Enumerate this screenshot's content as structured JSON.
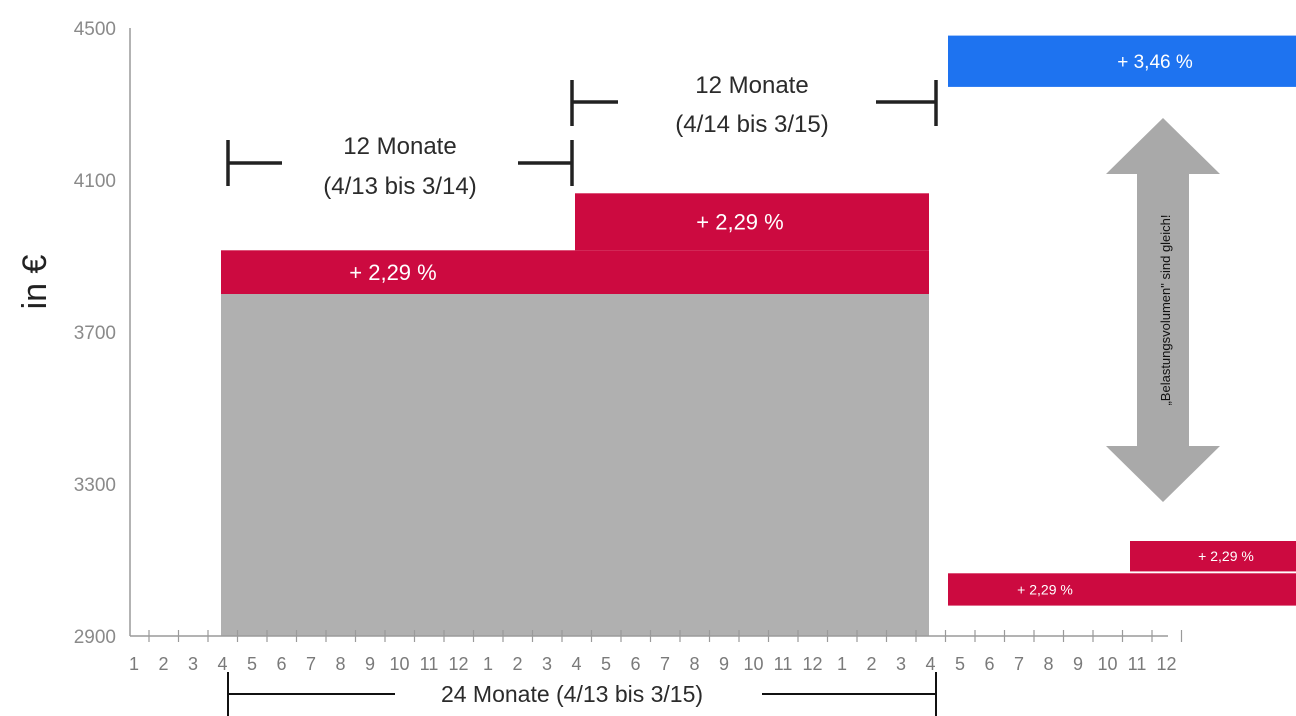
{
  "chart_data": {
    "type": "bar",
    "ylabel": "in €",
    "ylim": [
      2900,
      4500
    ],
    "y_ticks": [
      "4500",
      "4100",
      "3700",
      "3300",
      "2900"
    ],
    "x_ticks": [
      "1",
      "2",
      "3",
      "4",
      "5",
      "6",
      "7",
      "8",
      "9",
      "10",
      "11",
      "12",
      "1",
      "2",
      "3",
      "4",
      "5",
      "6",
      "7",
      "8",
      "9",
      "10",
      "11",
      "12",
      "1",
      "2",
      "3",
      "4",
      "5",
      "6",
      "7",
      "8",
      "9",
      "10",
      "11",
      "12"
    ],
    "grid": false,
    "bars": [
      {
        "name": "base",
        "color": "#b0b0b0",
        "x_from": "4/13",
        "x_to": "3/15",
        "y_from": 2900,
        "y_to": 3800,
        "label": ""
      },
      {
        "name": "increase_1",
        "color": "#cc0a40",
        "x_from": "4/13",
        "x_to": "3/15",
        "y_from": 3800,
        "y_to": 3915,
        "label": "+ 2,29 %"
      },
      {
        "name": "increase_2",
        "color": "#cc0a40",
        "x_from": "4/14",
        "x_to": "3/15",
        "y_from": 3915,
        "y_to": 4065,
        "label": "+ 2,29 %"
      },
      {
        "name": "comparison_right",
        "color": "#1e73f0",
        "x_from": "4/15",
        "x_to": "12/15",
        "y_from": 4345,
        "y_to": 4480,
        "label": "+ 3,46 %"
      },
      {
        "name": "small_1",
        "color": "#cc0a40",
        "x_from": "4/15",
        "x_to": "12/15",
        "y_from": 2980,
        "y_to": 3065,
        "label": "+ 2,29 %"
      },
      {
        "name": "small_2",
        "color": "#cc0a40",
        "x_from": "11/15",
        "x_to": "12/15",
        "y_from": 3070,
        "y_to": 3150,
        "label": "+ 2,29 %"
      }
    ],
    "annotations": {
      "span_1_line1": "12 Monate",
      "span_1_line2": "(4/13 bis 3/14)",
      "span_2_line1": "12 Monate",
      "span_2_line2": "(4/14 bis 3/15)",
      "span_total": "24 Monate (4/13 bis 3/15)",
      "arrow_text": "„Belastungsvolumen\" sind gleich!"
    }
  }
}
